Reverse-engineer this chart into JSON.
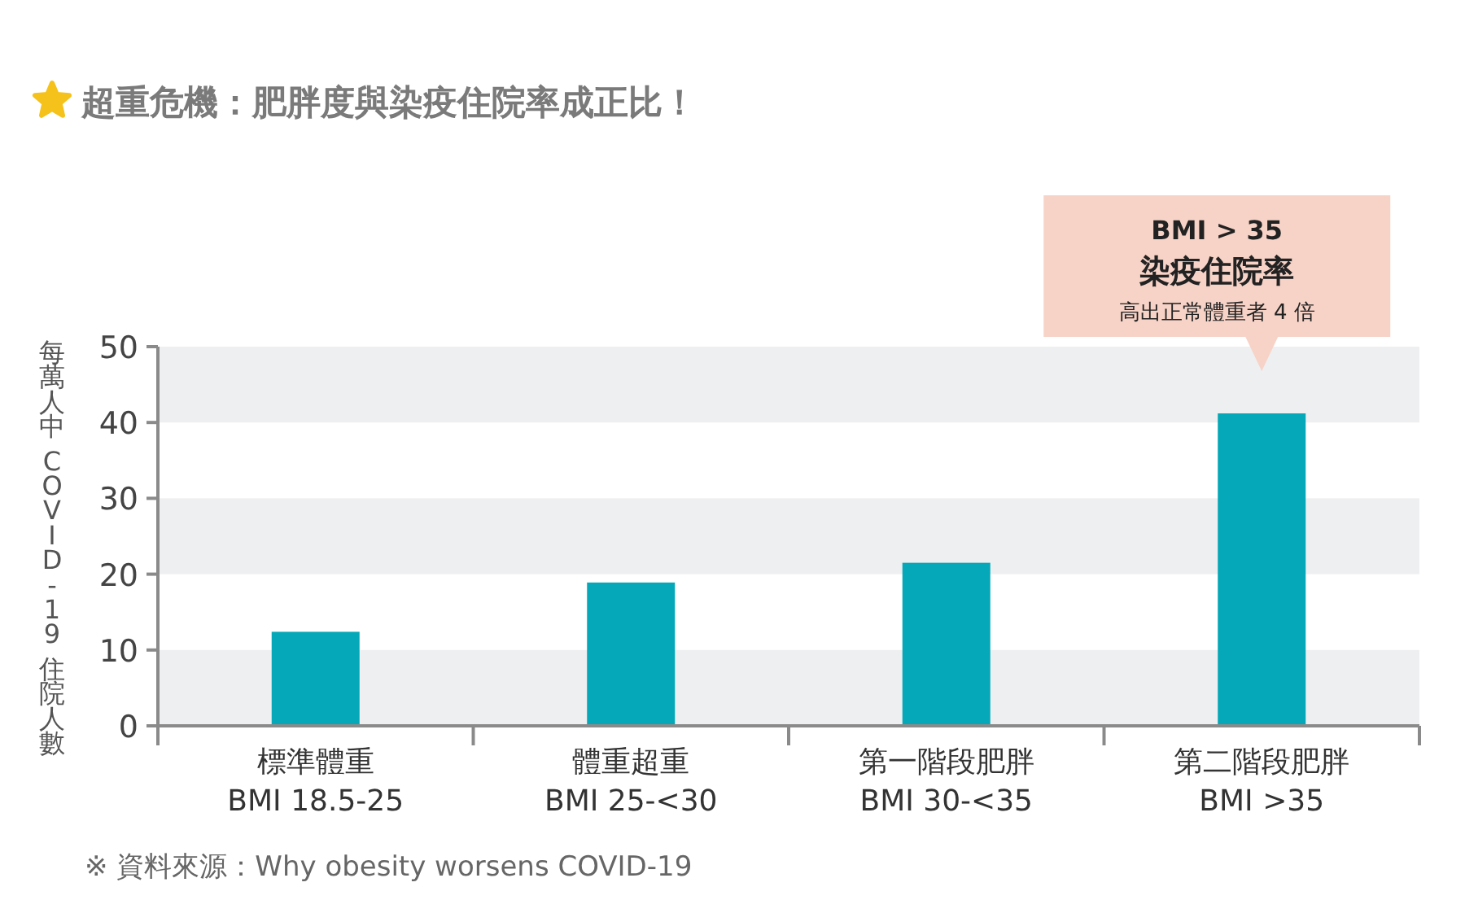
{
  "chart_data": {
    "type": "bar",
    "title": "超重危機：肥胖度與染疫住院率成正比！",
    "ylabel": "每萬人中 COVID-19 住院人數",
    "categories": [
      "標準體重\nBMI 18.5-25",
      "體重超重\nBMI 25-<30",
      "第一階段肥胖\nBMI 30-<35",
      "第二階段肥胖\nBMI >35"
    ],
    "values": [
      12.4,
      18.9,
      21.5,
      41.2
    ],
    "color": "#05a8b8",
    "ylim": [
      0,
      50
    ],
    "yticks": [
      0,
      10,
      20,
      30,
      40,
      50
    ],
    "bands": [
      {
        "axis": "y",
        "from": 0,
        "to": 10,
        "color": "#eeeff1"
      },
      {
        "axis": "y",
        "from": 20,
        "to": 30,
        "color": "#eeeff1"
      },
      {
        "axis": "y",
        "from": 40,
        "to": 50,
        "color": "#eeeff1"
      }
    ],
    "annotations": [
      "BMI > 35\n染疫住院率",
      "高出正常體重者 4 倍",
      "※ 資料來源：Why obesity worsens COVID-19"
    ]
  }
}
